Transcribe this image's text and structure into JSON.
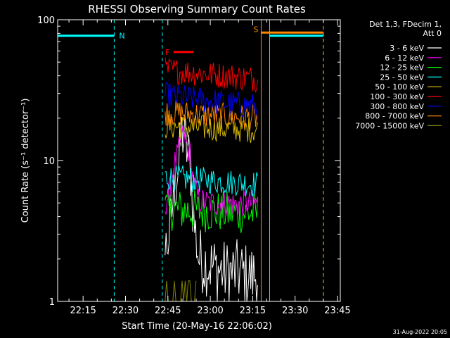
{
  "chart_data": {
    "type": "line",
    "title": "RHESSI Observing Summary Count Rates",
    "xlabel": "Start Time (20-May-16 22:06:02)",
    "ylabel": "Count Rate (s⁻¹ detector⁻¹)",
    "x_scale": "time (minutes)",
    "y_scale": "log",
    "xlim": [
      "22:06",
      "23:46"
    ],
    "ylim": [
      1,
      100
    ],
    "x_ticks": [
      "22:15",
      "22:30",
      "22:45",
      "23:00",
      "23:15",
      "23:30",
      "23:45"
    ],
    "y_ticks": [
      "1",
      "10",
      "100"
    ],
    "legend_header": [
      "Det 1,3, FDecim 1,",
      "Att 0"
    ],
    "legend_position": "right",
    "series": [
      {
        "name": "3 - 6 keV",
        "color": "#ffffff",
        "style": "noisy",
        "x": [
          "22:44",
          "22:46",
          "22:47",
          "22:49",
          "22:50",
          "22:51",
          "22:53",
          "22:54",
          "22:56",
          "23:00",
          "23:05",
          "23:10",
          "23:15",
          "23:17"
        ],
        "y": [
          2.2,
          3.4,
          6,
          10,
          16,
          14,
          9,
          4,
          2,
          1.8,
          1.6,
          1.6,
          1.5,
          1.6
        ]
      },
      {
        "name": "6 - 12 keV",
        "color": "#ff00ff",
        "style": "noisy",
        "x": [
          "22:44",
          "22:46",
          "22:47",
          "22:49",
          "22:50",
          "22:51",
          "22:53",
          "22:54",
          "22:56",
          "23:00",
          "23:05",
          "23:10",
          "23:15",
          "23:17"
        ],
        "y": [
          4.8,
          6.5,
          9,
          12,
          15,
          14,
          11,
          7,
          5.2,
          5,
          5,
          4.9,
          5,
          5
        ]
      },
      {
        "name": "12 - 25 keV",
        "color": "#00ff00",
        "style": "noisy",
        "x": [
          "22:44",
          "23:17"
        ],
        "y": [
          4.5,
          4.2
        ]
      },
      {
        "name": "25 - 50 keV",
        "color": "#00ffff",
        "style": "noisy",
        "x": [
          "22:44",
          "23:17"
        ],
        "y": [
          7.6,
          6.8
        ]
      },
      {
        "name": "50 - 100 keV",
        "color": "#d8b800",
        "style": "noisy",
        "x": [
          "22:44",
          "23:17"
        ],
        "y": [
          17.5,
          16.5
        ]
      },
      {
        "name": "100 - 300 keV",
        "color": "#ff0000",
        "style": "noisy",
        "x": [
          "22:44",
          "23:17"
        ],
        "y": [
          44,
          38
        ]
      },
      {
        "name": "300 - 800 keV",
        "color": "#0000ff",
        "style": "noisy",
        "x": [
          "22:44",
          "23:17"
        ],
        "y": [
          29,
          24
        ]
      },
      {
        "name": "800 - 7000 keV",
        "color": "#ff8800",
        "style": "noisy",
        "x": [
          "22:44",
          "23:17"
        ],
        "y": [
          22,
          20
        ]
      },
      {
        "name": "7000 - 15000 keV",
        "color": "#808000",
        "style": "sparse",
        "x": [
          "22:44",
          "22:55"
        ],
        "y": [
          1.4,
          1.4
        ]
      }
    ],
    "annotations": [
      {
        "label": "N",
        "color": "#00ffff",
        "start": "22:06",
        "end": "22:26",
        "level": 77
      },
      {
        "label": "F",
        "color": "#ff0000",
        "start": "22:47",
        "end": "22:54",
        "level": 59
      },
      {
        "label": "S",
        "color": "#ff8800",
        "start": "23:18",
        "end": "23:40",
        "level": 81
      },
      {
        "label": "",
        "color": "#00ffff",
        "start": "23:21",
        "end": "23:40",
        "level": 77
      }
    ],
    "vertical_markers": [
      {
        "time": "22:06",
        "color": "#00ffff",
        "dashed": false
      },
      {
        "time": "22:26",
        "color": "#00ffff",
        "dashed": true
      },
      {
        "time": "22:43",
        "color": "#00ffff",
        "dashed": true
      },
      {
        "time": "23:18",
        "color": "#ff8800",
        "dashed": false
      },
      {
        "time": "23:21",
        "color": "#00ffff",
        "dashed": false
      },
      {
        "time": "23:40",
        "color": "#00ffff",
        "dashed": true
      },
      {
        "time": "23:40",
        "color": "#ff8800",
        "dashed": true
      }
    ],
    "date_stamp": "31-Aug-2022 20:05"
  }
}
